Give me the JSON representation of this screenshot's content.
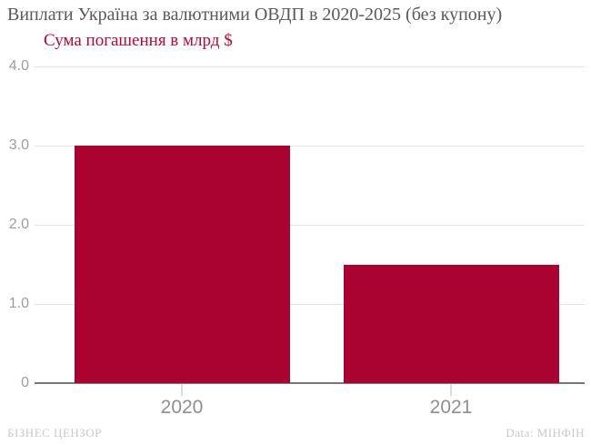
{
  "footer": {
    "left": "БІЗНЕС ЦЕНЗОР",
    "right": "Data: МІНФІН"
  },
  "colors": {
    "bar": "#AB0331",
    "subtitle": "#B60935",
    "title": "#595959",
    "grid": "#e5e5e5",
    "axis": "#787878",
    "ytick_label": "#9c9c9c",
    "xtick_mark": "#dcdcdc",
    "xtick_label": "#8e8e8e",
    "footer_text": "#c8c8c8",
    "background": "#ffffff"
  },
  "chart_data": {
    "type": "bar",
    "title": "Виплати Україна за валютними ОВДП в 2020-2025 (без купону)",
    "subtitle": "Сума погашення в млрд $",
    "categories": [
      "2020",
      "2021"
    ],
    "values": [
      3.0,
      1.5
    ],
    "xlabel": "",
    "ylabel": "Сума погашення в млрд $",
    "ylim": [
      0,
      4
    ],
    "yticks": [
      "4.0",
      "3.0",
      "2.0",
      "1.0",
      "0"
    ],
    "grid": true,
    "legend": false
  }
}
